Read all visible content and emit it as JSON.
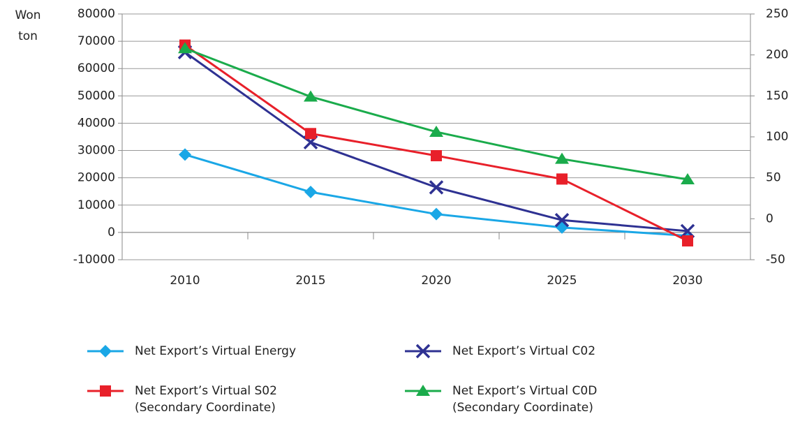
{
  "chart_data": {
    "type": "line",
    "ylabel": [
      "Won",
      "ton"
    ],
    "categories": [
      "2010",
      "2015",
      "2020",
      "2025",
      "2030"
    ],
    "ylim": [
      -10000,
      80000
    ],
    "yticks": [
      -10000,
      0,
      10000,
      20000,
      30000,
      40000,
      50000,
      60000,
      70000,
      80000
    ],
    "y2lim": [
      -50,
      250
    ],
    "y2ticks": [
      -50,
      0,
      50,
      100,
      150,
      200,
      250
    ],
    "grid": true,
    "series": [
      {
        "name": "Net Export’s Virtual Energy",
        "color": "#1aa7e6",
        "marker": "diamond",
        "values": [
          28500,
          14800,
          6700,
          1800,
          -1200
        ]
      },
      {
        "name": "Net Export’s Virtual C02",
        "color": "#2e3192",
        "marker": "x",
        "values": [
          66000,
          33000,
          16500,
          4500,
          500
        ]
      },
      {
        "name": "Net Export’s Virtual S02",
        "legend_note": "(Secondary Coordinate)",
        "color": "#e8202a",
        "marker": "square",
        "axis": "y2",
        "values": [
          212,
          104,
          77,
          48.5,
          -27
        ]
      },
      {
        "name": "Net Export’s Virtual C0D",
        "legend_note": "(Secondary Coordinate)",
        "color": "#1aab4b",
        "marker": "triangle",
        "axis": "y2",
        "values": [
          208,
          149,
          106,
          73,
          48
        ]
      }
    ]
  }
}
